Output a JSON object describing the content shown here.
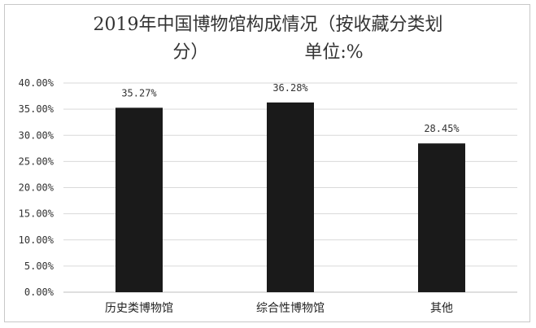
{
  "chart_data": {
    "type": "bar",
    "title": "2019年中国博物馆构成情况（按收藏分类划分）",
    "title_line1": "2019年中国博物馆构成情况（按收藏分类划",
    "title_line2": "分）",
    "unit_label": "单位:%",
    "categories": [
      "历史类博物馆",
      "综合性博物馆",
      "其他"
    ],
    "values": [
      35.27,
      36.28,
      28.45
    ],
    "data_labels": [
      "35.27%",
      "36.28%",
      "28.45%"
    ],
    "ylim": [
      0,
      40
    ],
    "yticks": [
      0,
      5,
      10,
      15,
      20,
      25,
      30,
      35,
      40
    ],
    "ytick_labels": [
      "0.00%",
      "5.00%",
      "10.00%",
      "15.00%",
      "20.00%",
      "25.00%",
      "30.00%",
      "35.00%",
      "40.00%"
    ],
    "grid": true,
    "bar_color": "#1a1a1a",
    "grid_color": "#d9d9d9"
  }
}
